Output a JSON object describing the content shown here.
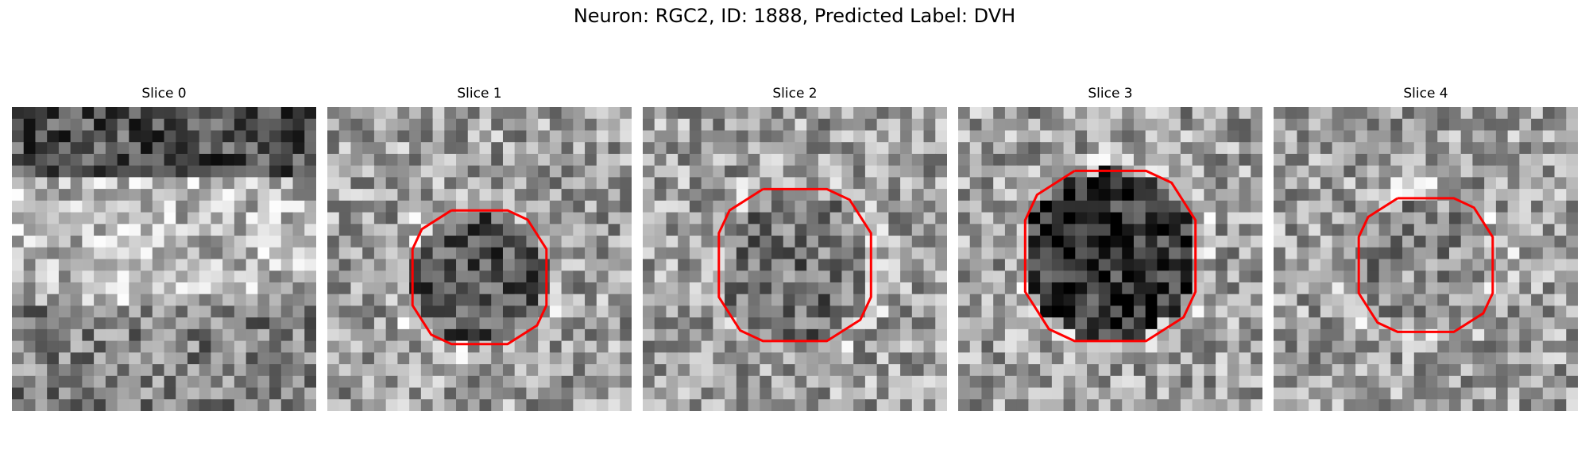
{
  "figure": {
    "title": "Neuron: RGC2, ID: 1888, Predicted Label: DVH",
    "contour_color": "#ff0000",
    "colormap": "gray"
  },
  "panels": [
    {
      "title": "Slice 0",
      "seed": 11,
      "has_contour": false
    },
    {
      "title": "Slice 1",
      "seed": 23,
      "has_contour": true
    },
    {
      "title": "Slice 2",
      "seed": 37,
      "has_contour": true
    },
    {
      "title": "Slice 3",
      "seed": 41,
      "has_contour": true
    },
    {
      "title": "Slice 4",
      "seed": 53,
      "has_contour": true
    }
  ]
}
